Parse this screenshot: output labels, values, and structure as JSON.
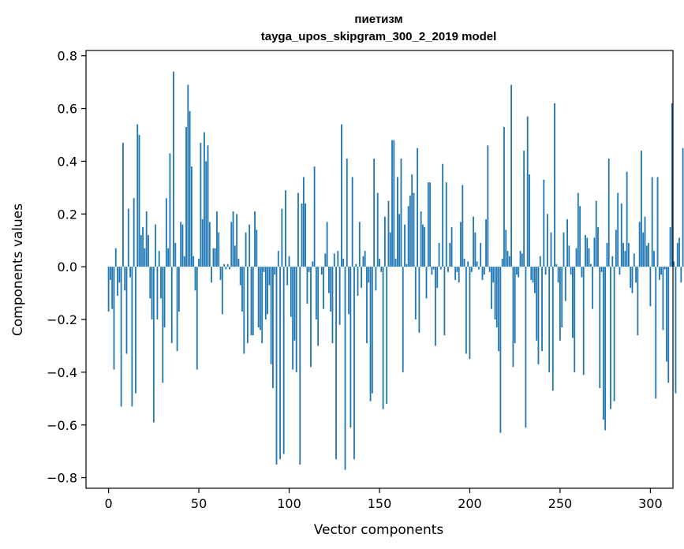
{
  "chart_data": {
    "type": "bar",
    "title": "пиетизм",
    "subtitle": "tayga_upos_skipgram_300_2_2019 model",
    "xlabel": "Vector components",
    "ylabel": "Components values",
    "xlim": [
      -12.5,
      312.5
    ],
    "ylim": [
      -0.84,
      0.82
    ],
    "xticks": [
      0,
      50,
      100,
      150,
      200,
      250,
      300
    ],
    "xtick_labels": [
      "0",
      "50",
      "100",
      "150",
      "200",
      "250",
      "300"
    ],
    "yticks": [
      -0.8,
      -0.6,
      -0.4,
      -0.2,
      0.0,
      0.2,
      0.4,
      0.6,
      0.8
    ],
    "ytick_labels": [
      "−0.8",
      "−0.6",
      "−0.4",
      "−0.2",
      "0.0",
      "0.2",
      "0.4",
      "0.6",
      "0.8"
    ],
    "bar_color": "#1f77b4",
    "grid": false,
    "values": [
      -0.17,
      -0.05,
      -0.16,
      -0.39,
      0.07,
      -0.11,
      -0.06,
      -0.53,
      0.47,
      -0.09,
      -0.33,
      0.22,
      -0.04,
      -0.53,
      0.26,
      -0.48,
      0.54,
      0.5,
      0.12,
      0.15,
      0.07,
      0.21,
      0.12,
      -0.12,
      -0.2,
      -0.59,
      0.16,
      -0.2,
      0.06,
      -0.12,
      -0.44,
      -0.23,
      0.26,
      0.07,
      0.43,
      -0.29,
      0.74,
      0.09,
      -0.32,
      -0.17,
      0.17,
      0.16,
      0.04,
      0.53,
      0.69,
      0.59,
      0.38,
      0.04,
      -0.09,
      -0.39,
      0.03,
      0.47,
      0.18,
      0.51,
      0.4,
      0.46,
      0.17,
      -0.06,
      0.07,
      0.07,
      0.21,
      0.13,
      -0.05,
      -0.18,
      0.01,
      -0.01,
      0.01,
      -0.01,
      0.17,
      0.21,
      0.08,
      0.2,
      0.03,
      -0.07,
      -0.17,
      -0.33,
      0.13,
      -0.29,
      0.16,
      -0.26,
      -0.26,
      0.21,
      0.14,
      -0.23,
      -0.24,
      -0.29,
      -0.02,
      -0.2,
      -0.18,
      -0.07,
      -0.37,
      -0.46,
      -0.03,
      -0.75,
      0.06,
      -0.73,
      0.22,
      -0.71,
      0.29,
      -0.07,
      0.04,
      -0.19,
      -0.39,
      -0.28,
      -0.4,
      0.28,
      -0.75,
      0.24,
      0.34,
      0.24,
      -0.14,
      -0.02,
      -0.38,
      0.02,
      0.38,
      -0.2,
      -0.3,
      0.0,
      -0.03,
      -0.16,
      0.05,
      0.17,
      -0.1,
      -0.17,
      -0.29,
      0.05,
      -0.73,
      0.06,
      -0.22,
      0.54,
      0.03,
      -0.77,
      0.41,
      -0.18,
      -0.61,
      0.34,
      -0.73,
      0.01,
      -0.11,
      0.17,
      -0.08,
      0.04,
      0.06,
      -0.29,
      -0.06,
      -0.51,
      -0.48,
      0.41,
      -0.09,
      0.28,
      0.03,
      -0.02,
      -0.54,
      0.19,
      -0.52,
      0.25,
      0.13,
      0.48,
      0.48,
      0.03,
      0.34,
      0.2,
      0.41,
      -0.4,
      0.16,
      0.01,
      0.23,
      0.27,
      0.35,
      0.28,
      -0.2,
      0.45,
      -0.25,
      0.21,
      0.16,
      0.15,
      -0.12,
      0.32,
      0.32,
      -0.03,
      -0.01,
      -0.3,
      -0.08,
      0.09,
      -0.01,
      0.39,
      -0.26,
      0.32,
      -0.02,
      0.09,
      0.15,
      0.0,
      -0.05,
      -0.02,
      -0.06,
      0.17,
      0.31,
      0.03,
      -0.33,
      0.02,
      -0.35,
      -0.02,
      0.19,
      0.13,
      0.02,
      -0.01,
      0.09,
      -0.05,
      -0.03,
      0.18,
      0.46,
      -0.02,
      -0.16,
      -0.06,
      -0.2,
      -0.23,
      -0.32,
      -0.63,
      0.03,
      0.53,
      0.14,
      0.06,
      0.04,
      0.69,
      -0.38,
      -0.29,
      -0.03,
      -0.04,
      0.06,
      0.05,
      0.44,
      -0.61,
      0.57,
      0.35,
      -0.05,
      -0.06,
      -0.1,
      -0.28,
      -0.37,
      0.04,
      -0.32,
      0.33,
      -0.03,
      0.2,
      -0.4,
      0.13,
      -0.47,
      0.62,
      0.01,
      -0.06,
      -0.28,
      -0.23,
      0.13,
      -0.13,
      0.18,
      0.08,
      -0.03,
      -0.27,
      -0.4,
      0.07,
      0.28,
      0.23,
      -0.04,
      -0.41,
      0.12,
      0.11,
      0.07,
      0.01,
      -0.16,
      0.11,
      0.25,
      0.15,
      -0.46,
      -0.02,
      -0.58,
      -0.62,
      0.09,
      0.41,
      -0.54,
      0.04,
      -0.51,
      0.14,
      0.28,
      -0.03,
      0.24,
      0.09,
      0.06,
      0.36,
      0.09,
      -0.08,
      -0.1,
      0.05,
      -0.06,
      -0.26,
      0.17,
      0.44,
      0.13,
      0.19,
      0.08,
      0.09,
      -0.15,
      0.34,
      0.06,
      -0.5,
      0.34,
      -0.05,
      -0.03,
      -0.24,
      -0.01,
      -0.36,
      -0.44,
      0.15,
      0.62,
      0.02,
      -0.48,
      0.09,
      0.11,
      -0.06,
      0.45,
      -0.03
    ]
  }
}
